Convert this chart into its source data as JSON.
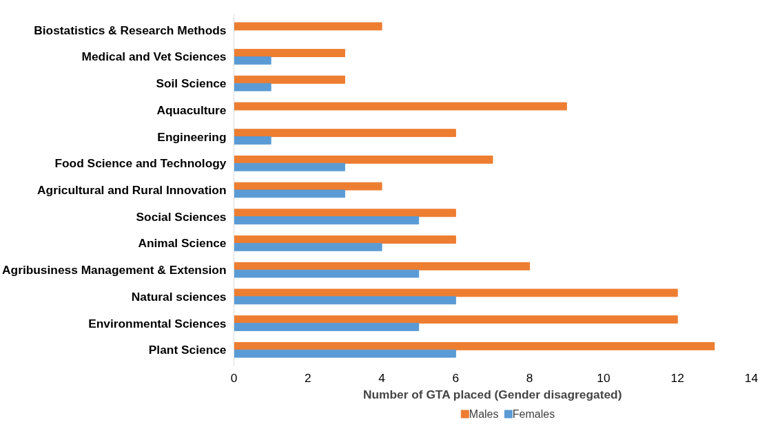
{
  "chart_data": {
    "type": "bar",
    "orientation": "horizontal",
    "xlabel": "Number of GTA placed (Gender disagregated)",
    "categories": [
      "Biostatistics & Research Methods",
      "Medical and Vet Sciences",
      "Soil Science",
      "Aquaculture",
      "Engineering",
      "Food Science and Technology",
      "Agricultural and Rural Innovation",
      "Social Sciences",
      "Animal Science",
      "Agribusiness Management & Extension",
      "Natural sciences",
      "Environmental Sciences",
      "Plant Science"
    ],
    "series": [
      {
        "name": "Males",
        "color": "#ed7d31",
        "values": [
          4,
          3,
          3,
          9,
          6,
          7,
          4,
          6,
          6,
          8,
          12,
          12,
          13
        ]
      },
      {
        "name": "Females",
        "color": "#5b9bd5",
        "values": [
          0,
          1,
          1,
          0,
          1,
          3,
          3,
          5,
          4,
          5,
          6,
          5,
          6
        ]
      }
    ],
    "xlim": [
      0,
      14
    ],
    "xticks": [
      0,
      2,
      4,
      6,
      8,
      10,
      12,
      14
    ],
    "grid": false,
    "legend": "bottom"
  }
}
